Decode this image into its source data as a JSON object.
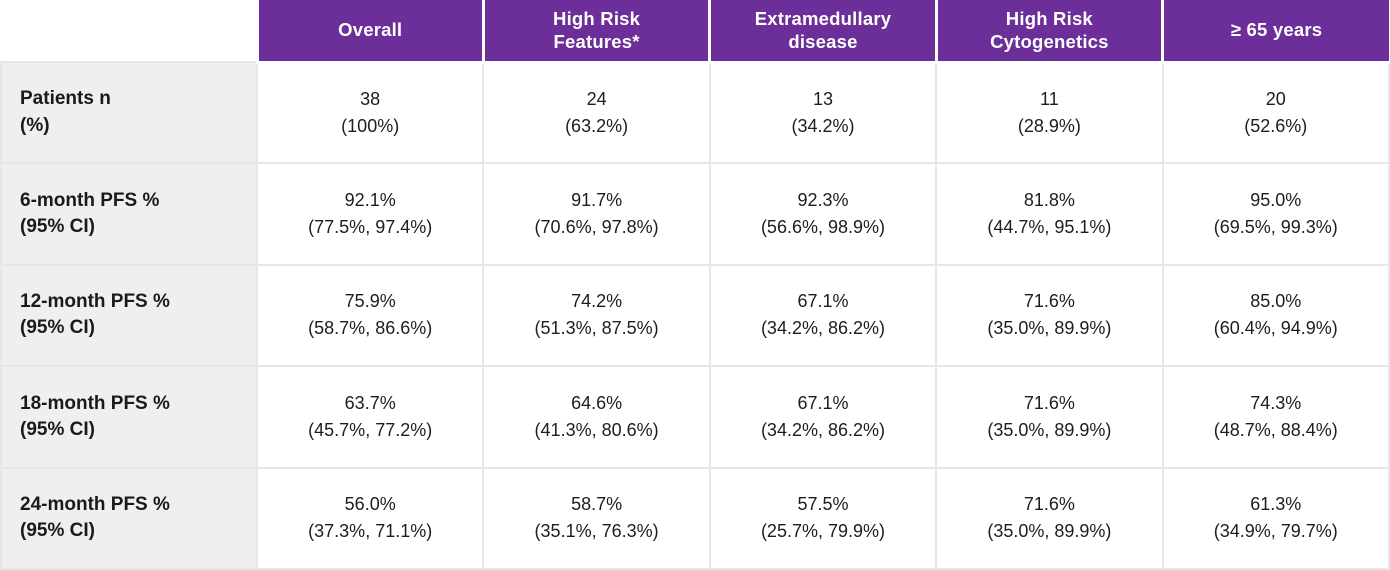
{
  "colors": {
    "header_bg": "#6C2F9A",
    "header_text": "#FFFFFF",
    "row_label_bg": "#F0EFF0",
    "cell_bg": "#FFFFFF",
    "grid_line": "#E6E5E7",
    "text": "#1A1A1A"
  },
  "chart_data": {
    "type": "table",
    "title": "",
    "columns": [
      "Overall",
      "High Risk\nFeatures*",
      "Extramedullary\ndisease",
      "High Risk\nCytogenetics",
      "≥ 65 years"
    ],
    "rows": [
      {
        "label": "Patients n\n(%)",
        "cells": [
          {
            "value": "38",
            "ci": "(100%)"
          },
          {
            "value": "24",
            "ci": "(63.2%)"
          },
          {
            "value": "13",
            "ci": "(34.2%)"
          },
          {
            "value": "11",
            "ci": "(28.9%)"
          },
          {
            "value": "20",
            "ci": "(52.6%)"
          }
        ]
      },
      {
        "label": "6-month PFS %\n(95% CI)",
        "cells": [
          {
            "value": "92.1%",
            "ci": "(77.5%, 97.4%)"
          },
          {
            "value": "91.7%",
            "ci": "(70.6%, 97.8%)"
          },
          {
            "value": "92.3%",
            "ci": "(56.6%, 98.9%)"
          },
          {
            "value": "81.8%",
            "ci": "(44.7%, 95.1%)"
          },
          {
            "value": "95.0%",
            "ci": "(69.5%, 99.3%)"
          }
        ]
      },
      {
        "label": "12-month PFS %\n(95% CI)",
        "cells": [
          {
            "value": "75.9%",
            "ci": "(58.7%, 86.6%)"
          },
          {
            "value": "74.2%",
            "ci": "(51.3%, 87.5%)"
          },
          {
            "value": "67.1%",
            "ci": "(34.2%, 86.2%)"
          },
          {
            "value": "71.6%",
            "ci": "(35.0%, 89.9%)"
          },
          {
            "value": "85.0%",
            "ci": "(60.4%, 94.9%)"
          }
        ]
      },
      {
        "label": "18-month PFS %\n(95% CI)",
        "cells": [
          {
            "value": "63.7%",
            "ci": "(45.7%, 77.2%)"
          },
          {
            "value": "64.6%",
            "ci": "(41.3%, 80.6%)"
          },
          {
            "value": "67.1%",
            "ci": "(34.2%, 86.2%)"
          },
          {
            "value": "71.6%",
            "ci": "(35.0%, 89.9%)"
          },
          {
            "value": "74.3%",
            "ci": "(48.7%, 88.4%)"
          }
        ]
      },
      {
        "label": "24-month PFS %\n(95% CI)",
        "cells": [
          {
            "value": "56.0%",
            "ci": "(37.3%, 71.1%)"
          },
          {
            "value": "58.7%",
            "ci": "(35.1%, 76.3%)"
          },
          {
            "value": "57.5%",
            "ci": "(25.7%, 79.9%)"
          },
          {
            "value": "71.6%",
            "ci": "(35.0%, 89.9%)"
          },
          {
            "value": "61.3%",
            "ci": "(34.9%, 79.7%)"
          }
        ]
      }
    ],
    "numeric": {
      "patients_n": [
        38,
        24,
        13,
        11,
        20
      ],
      "patients_pct": [
        100,
        63.2,
        34.2,
        28.9,
        52.6
      ],
      "pfs_6mo": {
        "estimate": [
          92.1,
          91.7,
          92.3,
          81.8,
          95.0
        ],
        "ci_low": [
          77.5,
          70.6,
          56.6,
          44.7,
          69.5
        ],
        "ci_high": [
          97.4,
          97.8,
          98.9,
          95.1,
          99.3
        ]
      },
      "pfs_12mo": {
        "estimate": [
          75.9,
          74.2,
          67.1,
          71.6,
          85.0
        ],
        "ci_low": [
          58.7,
          51.3,
          34.2,
          35.0,
          60.4
        ],
        "ci_high": [
          86.6,
          87.5,
          86.2,
          89.9,
          94.9
        ]
      },
      "pfs_18mo": {
        "estimate": [
          63.7,
          64.6,
          67.1,
          71.6,
          74.3
        ],
        "ci_low": [
          45.7,
          41.3,
          34.2,
          35.0,
          48.7
        ],
        "ci_high": [
          77.2,
          80.6,
          86.2,
          89.9,
          88.4
        ]
      },
      "pfs_24mo": {
        "estimate": [
          56.0,
          58.7,
          57.5,
          71.6,
          61.3
        ],
        "ci_low": [
          37.3,
          35.1,
          25.7,
          35.0,
          34.9
        ],
        "ci_high": [
          71.1,
          76.3,
          79.9,
          89.9,
          79.7
        ]
      }
    }
  }
}
